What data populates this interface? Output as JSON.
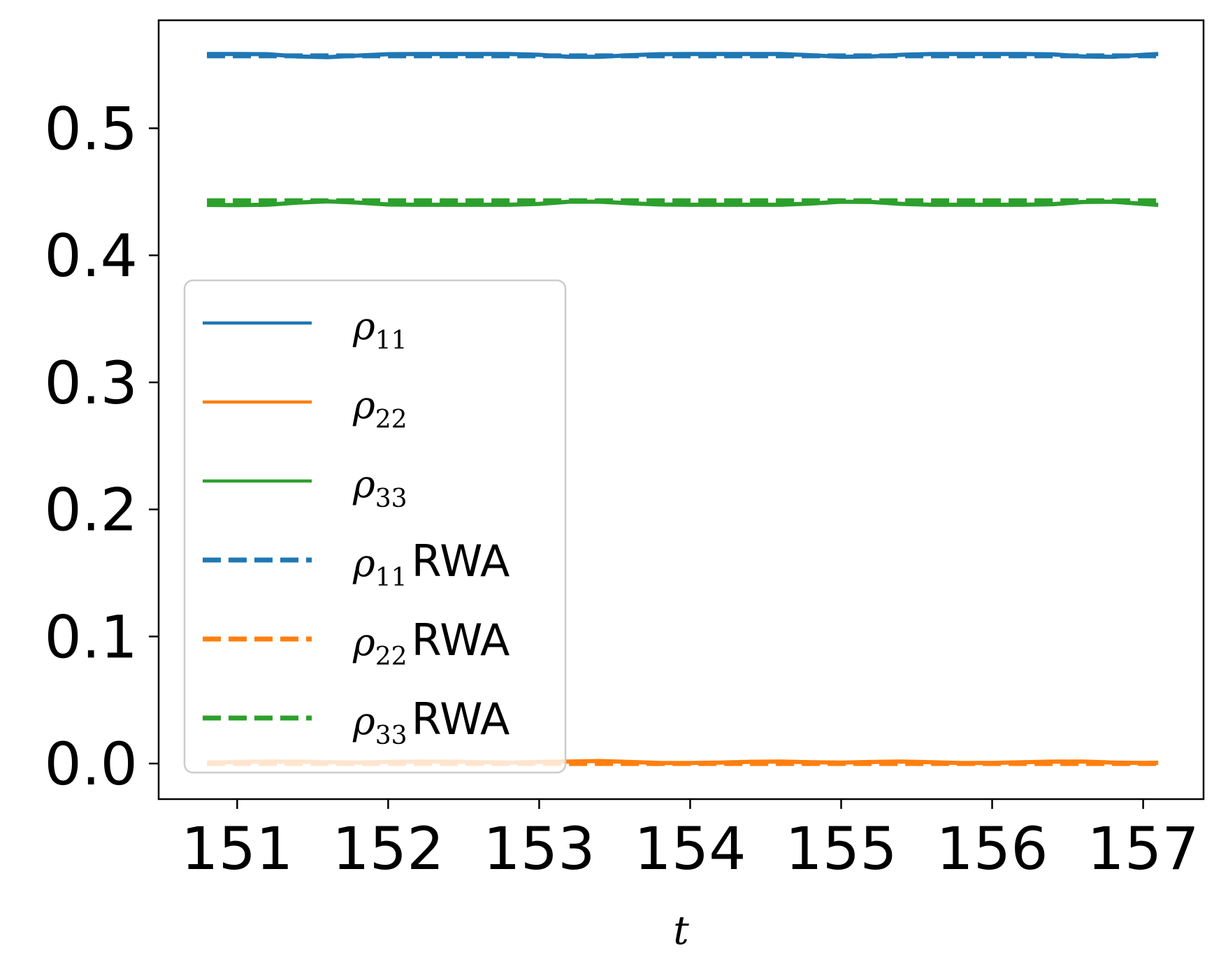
{
  "chart_data": {
    "type": "line",
    "title": "",
    "xlabel": "t",
    "ylabel": "",
    "xlim": [
      150.48,
      157.4
    ],
    "ylim": [
      -0.028,
      0.585
    ],
    "xticks": [
      151,
      152,
      153,
      154,
      155,
      156,
      157
    ],
    "xtick_labels": [
      "151",
      "152",
      "153",
      "154",
      "155",
      "156",
      "157"
    ],
    "yticks": [
      0.0,
      0.1,
      0.2,
      0.3,
      0.4,
      0.5
    ],
    "ytick_labels": [
      "0.0",
      "0.1",
      "0.2",
      "0.3",
      "0.4",
      "0.5"
    ],
    "grid": false,
    "legend_position": "lower-left",
    "x": [
      150.8,
      151.0,
      151.2,
      151.4,
      151.6,
      151.8,
      152.0,
      152.2,
      152.4,
      152.6,
      152.8,
      153.0,
      153.2,
      153.4,
      153.6,
      153.8,
      154.0,
      154.2,
      154.4,
      154.6,
      154.8,
      155.0,
      155.2,
      155.4,
      155.6,
      155.8,
      156.0,
      156.2,
      156.4,
      156.6,
      156.8,
      157.0,
      157.1
    ],
    "series": [
      {
        "name": "ρ11",
        "legend_symbol": "ρ",
        "legend_subscript": "11",
        "legend_suffix": "",
        "color": "#1f77b4",
        "style": "solid",
        "values": [
          0.5585,
          0.5585,
          0.5583,
          0.5565,
          0.556,
          0.5572,
          0.5583,
          0.5585,
          0.5585,
          0.5585,
          0.5585,
          0.5578,
          0.5562,
          0.5562,
          0.5575,
          0.5583,
          0.5585,
          0.5585,
          0.5585,
          0.5585,
          0.5575,
          0.5562,
          0.5565,
          0.5578,
          0.5585,
          0.5585,
          0.5585,
          0.5585,
          0.5582,
          0.5565,
          0.5562,
          0.5578,
          0.5585
        ]
      },
      {
        "name": "ρ22",
        "legend_symbol": "ρ",
        "legend_subscript": "22",
        "legend_suffix": "",
        "color": "#ff7f0e",
        "style": "solid",
        "values": [
          0.0008,
          0.0012,
          0.0016,
          0.0015,
          0.001,
          0.0008,
          0.0012,
          0.0016,
          0.0015,
          0.001,
          0.0008,
          0.0012,
          0.0016,
          0.002,
          0.0012,
          0.0005,
          0.0004,
          0.0008,
          0.0014,
          0.0016,
          0.001,
          0.0008,
          0.0012,
          0.0016,
          0.001,
          0.0004,
          0.0005,
          0.001,
          0.0015,
          0.0016,
          0.0008,
          0.0005,
          0.0006
        ]
      },
      {
        "name": "ρ33",
        "legend_symbol": "ρ",
        "legend_subscript": "33",
        "legend_suffix": "",
        "color": "#2ca02c",
        "style": "solid",
        "values": [
          0.4397,
          0.4395,
          0.4398,
          0.4415,
          0.4425,
          0.4415,
          0.44,
          0.4398,
          0.4398,
          0.4398,
          0.4398,
          0.4405,
          0.4422,
          0.4422,
          0.441,
          0.44,
          0.4398,
          0.4398,
          0.4398,
          0.4398,
          0.4408,
          0.4422,
          0.442,
          0.4405,
          0.4398,
          0.4398,
          0.4398,
          0.4398,
          0.4402,
          0.442,
          0.4422,
          0.4405,
          0.4397
        ]
      },
      {
        "name": "ρ11RWA",
        "legend_symbol": "ρ",
        "legend_subscript": "11",
        "legend_suffix": "RWA",
        "color": "#1f77b4",
        "style": "dashed",
        "values": [
          0.557,
          0.557,
          0.557,
          0.557,
          0.557,
          0.557,
          0.557,
          0.557,
          0.557,
          0.557,
          0.557,
          0.557,
          0.557,
          0.557,
          0.557,
          0.557,
          0.557,
          0.557,
          0.557,
          0.557,
          0.557,
          0.557,
          0.557,
          0.557,
          0.557,
          0.557,
          0.557,
          0.557,
          0.557,
          0.557,
          0.557,
          0.557,
          0.557
        ]
      },
      {
        "name": "ρ22RWA",
        "legend_symbol": "ρ",
        "legend_subscript": "22",
        "legend_suffix": "RWA",
        "color": "#ff7f0e",
        "style": "dashed",
        "values": [
          0.0,
          0.0,
          0.0,
          0.0,
          0.0,
          0.0,
          0.0,
          0.0,
          0.0,
          0.0,
          0.0,
          0.0,
          0.0,
          0.0,
          0.0,
          0.0,
          0.0,
          0.0,
          0.0,
          0.0,
          0.0,
          0.0,
          0.0,
          0.0,
          0.0,
          0.0,
          0.0,
          0.0,
          0.0,
          0.0,
          0.0,
          0.0,
          0.0
        ]
      },
      {
        "name": "ρ33RWA",
        "legend_symbol": "ρ",
        "legend_subscript": "33",
        "legend_suffix": "RWA",
        "color": "#2ca02c",
        "style": "dashed",
        "values": [
          0.443,
          0.443,
          0.443,
          0.443,
          0.443,
          0.443,
          0.443,
          0.443,
          0.443,
          0.443,
          0.443,
          0.443,
          0.443,
          0.443,
          0.443,
          0.443,
          0.443,
          0.443,
          0.443,
          0.443,
          0.443,
          0.443,
          0.443,
          0.443,
          0.443,
          0.443,
          0.443,
          0.443,
          0.443,
          0.443,
          0.443,
          0.443,
          0.443
        ]
      }
    ]
  }
}
